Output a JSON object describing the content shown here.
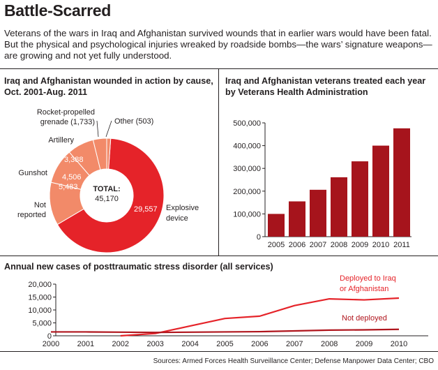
{
  "title": "Battle-Scarred",
  "intro": "Veterans of the wars in Iraq and Afghanistan survived wounds that in earlier wars would have been fatal. But the physical and psychological injuries wreaked by roadside bombs—the wars’ signature weapons—are growing and not yet fully understood.",
  "source": "Sources: Armed Forces Health Surveillance Center; Defense Manpower Data Center; CBO",
  "colors": {
    "red": "#e52329",
    "light_red": "#ef866f",
    "mid_red": "#f28a69",
    "dark_red": "#a6141c",
    "line_dark": "#b0151d"
  },
  "chart_data": [
    {
      "type": "pie",
      "title": "Iraq and Afghanistan wounded in action by cause, Oct. 2001-Aug. 2011",
      "center_label": "TOTAL:",
      "center_value": "45,170",
      "slices": [
        {
          "name": "Explosive device",
          "value": 29557,
          "value_label": "29,557",
          "color": "#e52329"
        },
        {
          "name": "Not reported",
          "value": 5483,
          "value_label": "5,483",
          "color": "#f28a69"
        },
        {
          "name": "Gunshot",
          "value": 4506,
          "value_label": "4,506",
          "color": "#f28a69"
        },
        {
          "name": "Artillery",
          "value": 3388,
          "value_label": "3,388",
          "color": "#f28a69"
        },
        {
          "name": "Rocket-propelled grenade (1,733)",
          "value": 1733,
          "value_label": "",
          "color": "#f28a69"
        },
        {
          "name": "Other (503)",
          "value": 503,
          "value_label": "",
          "color": "#f28a69"
        }
      ],
      "category_labels": {
        "explosive": [
          "Explosive",
          "device"
        ],
        "not_reported": [
          "Not",
          "reported"
        ],
        "gunshot": [
          "Gunshot"
        ],
        "artillery": [
          "Artillery"
        ],
        "rpg": [
          "Rocket-propelled",
          "grenade (1,733)"
        ],
        "other": [
          "Other (503)"
        ]
      }
    },
    {
      "type": "bar",
      "title": "Iraq and Afghanistan veterans treated each year by Veterans Health Administration",
      "categories": [
        "2005",
        "2006",
        "2007",
        "2008",
        "2009",
        "2010",
        "2011"
      ],
      "values": [
        100000,
        155000,
        206000,
        261000,
        331000,
        400000,
        476000
      ],
      "ylim": [
        0,
        500000
      ],
      "yticks": [
        "0",
        "100,000",
        "200,000",
        "300,000",
        "400,000",
        "500,000"
      ],
      "grid": false
    },
    {
      "type": "line",
      "title": "Annual new cases of posttraumatic stress disorder (all services)",
      "x": [
        "2000",
        "2001",
        "2002",
        "2003",
        "2004",
        "2005",
        "2006",
        "2007",
        "2008",
        "2009",
        "2010"
      ],
      "ylim": [
        0,
        20000
      ],
      "yticks": [
        "0",
        "5,000",
        "10,000",
        "15,000",
        "20,000"
      ],
      "grid": false,
      "series": [
        {
          "name": "Deployed to Iraq or Afghanistan",
          "label_lines": [
            "Deployed to Iraq",
            "or Afghanistan"
          ],
          "x": [
            2002,
            2003,
            2004,
            2005,
            2006,
            2007,
            2008,
            2009,
            2010
          ],
          "values": [
            0,
            900,
            3800,
            6700,
            7600,
            11700,
            14300,
            13900,
            14600
          ],
          "color": "#e52329"
        },
        {
          "name": "Not deployed",
          "label_lines": [
            "Not deployed"
          ],
          "x": [
            2000,
            2001,
            2002,
            2003,
            2004,
            2005,
            2006,
            2007,
            2008,
            2009,
            2010
          ],
          "values": [
            1500,
            1500,
            1400,
            1300,
            1400,
            1500,
            1600,
            1900,
            2200,
            2300,
            2500
          ],
          "color": "#b0151d"
        }
      ]
    }
  ]
}
